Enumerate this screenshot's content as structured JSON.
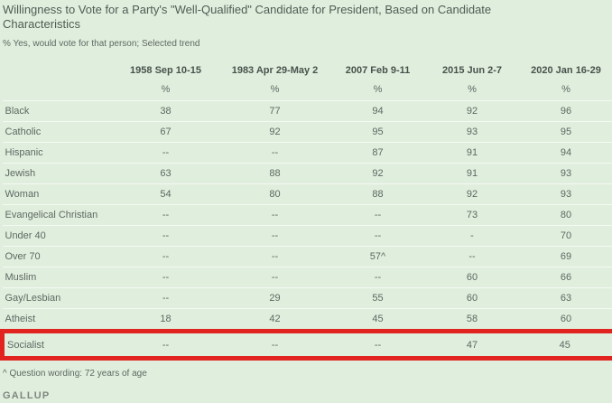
{
  "colors": {
    "background": "#e0eedd",
    "highlight_red": "#e22420",
    "separator": "#f5faf2"
  },
  "header": {
    "title": "Willingness to Vote for a Party's \"Well-Qualified\" Candidate for President, Based on Candidate Characteristics",
    "subtitle": "% Yes, would vote for that person; Selected trend"
  },
  "table": {
    "columns": [
      "1958 Sep 10-15",
      "1983 Apr 29-May 2",
      "2007 Feb 9-11",
      "2015 Jun 2-7",
      "2020 Jan 16-29"
    ],
    "unit_row": [
      "%",
      "%",
      "%",
      "%",
      "%"
    ],
    "rows": [
      {
        "label": "Black",
        "values": [
          "38",
          "77",
          "94",
          "92",
          "96"
        ],
        "highlighted": false
      },
      {
        "label": "Catholic",
        "values": [
          "67",
          "92",
          "95",
          "93",
          "95"
        ],
        "highlighted": false
      },
      {
        "label": "Hispanic",
        "values": [
          "--",
          "--",
          "87",
          "91",
          "94"
        ],
        "highlighted": false
      },
      {
        "label": "Jewish",
        "values": [
          "63",
          "88",
          "92",
          "91",
          "93"
        ],
        "highlighted": false
      },
      {
        "label": "Woman",
        "values": [
          "54",
          "80",
          "88",
          "92",
          "93"
        ],
        "highlighted": false
      },
      {
        "label": "Evangelical Christian",
        "values": [
          "--",
          "--",
          "--",
          "73",
          "80"
        ],
        "highlighted": false
      },
      {
        "label": "Under 40",
        "values": [
          "--",
          "--",
          "--",
          "-",
          "70"
        ],
        "highlighted": false
      },
      {
        "label": "Over 70",
        "values": [
          "--",
          "--",
          "57^",
          "--",
          "69"
        ],
        "highlighted": false
      },
      {
        "label": "Muslim",
        "values": [
          "--",
          "--",
          "--",
          "60",
          "66"
        ],
        "highlighted": false
      },
      {
        "label": "Gay/Lesbian",
        "values": [
          "--",
          "29",
          "55",
          "60",
          "63"
        ],
        "highlighted": false
      },
      {
        "label": "Atheist",
        "values": [
          "18",
          "42",
          "45",
          "58",
          "60"
        ],
        "highlighted": false
      },
      {
        "label": "Socialist",
        "values": [
          "--",
          "--",
          "--",
          "47",
          "45"
        ],
        "highlighted": true
      }
    ]
  },
  "footer": {
    "footnote": "^ Question wording: 72 years of age",
    "brand": "GALLUP"
  },
  "chart_data": {
    "type": "table",
    "title": "Willingness to Vote for a Party's \"Well-Qualified\" Candidate for President, Based on Candidate Characteristics",
    "subtitle": "% Yes, would vote for that person; Selected trend",
    "categories": [
      "Black",
      "Catholic",
      "Hispanic",
      "Jewish",
      "Woman",
      "Evangelical Christian",
      "Under 40",
      "Over 70",
      "Muslim",
      "Gay/Lesbian",
      "Atheist",
      "Socialist"
    ],
    "series": [
      {
        "name": "1958 Sep 10-15",
        "values": [
          38,
          67,
          null,
          63,
          54,
          null,
          null,
          null,
          null,
          null,
          18,
          null
        ]
      },
      {
        "name": "1983 Apr 29-May 2",
        "values": [
          77,
          92,
          null,
          88,
          80,
          null,
          null,
          null,
          null,
          29,
          42,
          null
        ]
      },
      {
        "name": "2007 Feb 9-11",
        "values": [
          94,
          95,
          87,
          92,
          88,
          null,
          null,
          57,
          null,
          55,
          45,
          null
        ]
      },
      {
        "name": "2015 Jun 2-7",
        "values": [
          92,
          93,
          91,
          91,
          92,
          73,
          null,
          null,
          60,
          60,
          58,
          47
        ]
      },
      {
        "name": "2020 Jan 16-29",
        "values": [
          96,
          95,
          94,
          93,
          93,
          80,
          70,
          69,
          66,
          63,
          60,
          45
        ]
      }
    ],
    "unit": "% Yes",
    "highlighted_row": "Socialist",
    "footnote": "^ Question wording: 72 years of age",
    "source": "GALLUP"
  }
}
